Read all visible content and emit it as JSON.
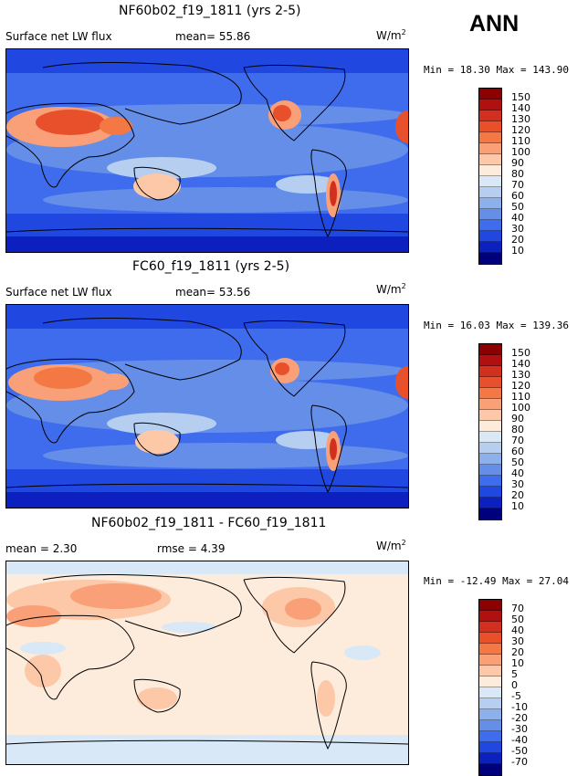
{
  "season": "ANN",
  "unit_label": "W/m",
  "unit_exp": "2",
  "panels": [
    {
      "title": "NF60b02_f19_1811 (yrs 2-5)",
      "left_label": "Surface net LW flux",
      "mid_label": "mean=  55.86",
      "minmax": "Min =  18.30 Max = 143.90"
    },
    {
      "title": "FC60_f19_1811 (yrs 2-5)",
      "left_label": "Surface net LW flux",
      "mid_label": "mean=  53.56",
      "minmax": "Min =  16.03 Max = 139.36"
    },
    {
      "title": "NF60b02_f19_1811 - FC60_f19_1811",
      "left_label": "mean =   2.30",
      "mid_label": "rmse =   4.39",
      "minmax": "Min = -12.49 Max =  27.04"
    }
  ],
  "chart_data": [
    {
      "type": "heatmap",
      "title": "NF60b02_f19_1811 (yrs 2-5)",
      "variable": "Surface net LW flux",
      "units": "W/m^2",
      "mean": 55.86,
      "min": 18.3,
      "max": 143.9,
      "colorbar_levels": [
        150,
        140,
        130,
        120,
        110,
        100,
        90,
        80,
        70,
        60,
        50,
        40,
        30,
        20,
        10
      ],
      "colorbar_colors": [
        "#8b0000",
        "#b01010",
        "#d2301e",
        "#e8502c",
        "#f47844",
        "#f9a078",
        "#fcc8a8",
        "#fdebdc",
        "#d8e8f6",
        "#b6cef0",
        "#8cb0ec",
        "#648ee8",
        "#3e6cec",
        "#2048e0",
        "#0c20c0",
        "#00007c"
      ]
    },
    {
      "type": "heatmap",
      "title": "FC60_f19_1811 (yrs 2-5)",
      "variable": "Surface net LW flux",
      "units": "W/m^2",
      "mean": 53.56,
      "min": 16.03,
      "max": 139.36,
      "colorbar_levels": [
        150,
        140,
        130,
        120,
        110,
        100,
        90,
        80,
        70,
        60,
        50,
        40,
        30,
        20,
        10
      ],
      "colorbar_colors": [
        "#8b0000",
        "#b01010",
        "#d2301e",
        "#e8502c",
        "#f47844",
        "#f9a078",
        "#fcc8a8",
        "#fdebdc",
        "#d8e8f6",
        "#b6cef0",
        "#8cb0ec",
        "#648ee8",
        "#3e6cec",
        "#2048e0",
        "#0c20c0",
        "#00007c"
      ]
    },
    {
      "type": "heatmap",
      "title": "NF60b02_f19_1811 - FC60_f19_1811",
      "variable": "difference",
      "units": "W/m^2",
      "mean": 2.3,
      "rmse": 4.39,
      "min": -12.49,
      "max": 27.04,
      "colorbar_levels": [
        70,
        50,
        40,
        30,
        20,
        10,
        5,
        0,
        -5,
        -10,
        -20,
        -30,
        -40,
        -50,
        -70
      ],
      "colorbar_colors": [
        "#8b0000",
        "#b01010",
        "#d2301e",
        "#e8502c",
        "#f47844",
        "#f9a078",
        "#fcc8a8",
        "#fdebdc",
        "#d8e8f6",
        "#b6cef0",
        "#8cb0ec",
        "#648ee8",
        "#3e6cec",
        "#2048e0",
        "#0c20c0",
        "#00007c"
      ]
    }
  ]
}
